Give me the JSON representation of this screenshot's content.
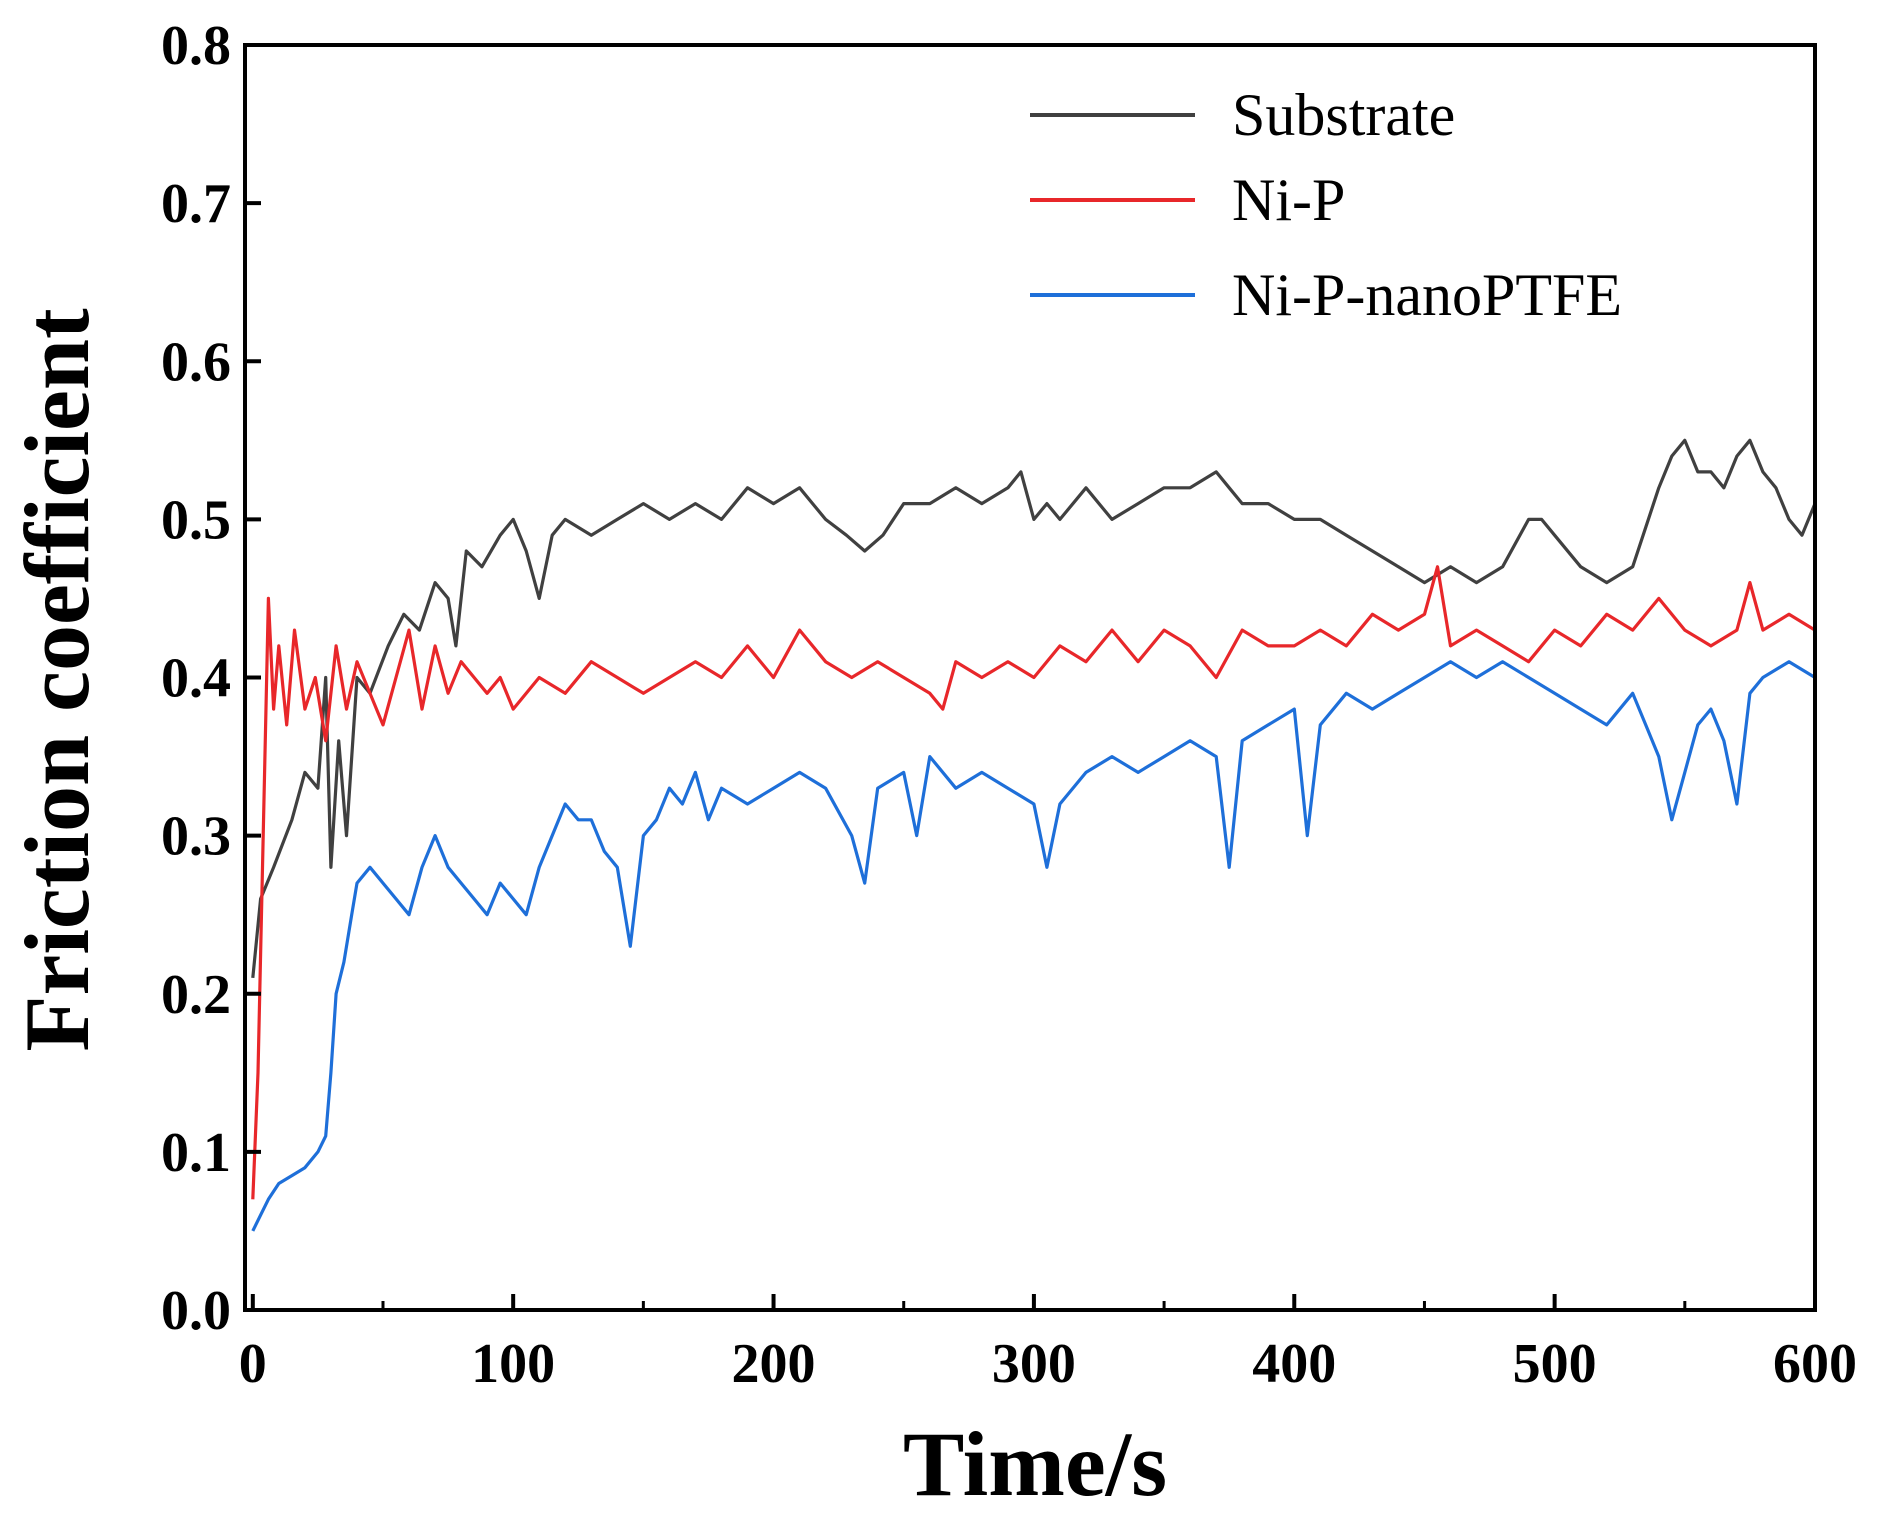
{
  "chart_data": {
    "type": "line",
    "title": "",
    "xlabel": "Time/s",
    "ylabel": "Friction coefficient",
    "xlim": [
      -3,
      600
    ],
    "ylim": [
      0.0,
      0.8
    ],
    "xticks": [
      0,
      100,
      200,
      300,
      400,
      500,
      600
    ],
    "xtick_labels": [
      "0",
      "100",
      "200",
      "300",
      "400",
      "500",
      "600"
    ],
    "yticks": [
      0.0,
      0.1,
      0.2,
      0.3,
      0.4,
      0.5,
      0.6,
      0.7,
      0.8
    ],
    "ytick_labels": [
      "0.0",
      "0.1",
      "0.2",
      "0.3",
      "0.4",
      "0.5",
      "0.6",
      "0.7",
      "0.8"
    ],
    "grid": false,
    "legend_position": "top-right",
    "series": [
      {
        "name": "Substrate",
        "color": "#404040",
        "x": [
          0,
          3,
          8,
          15,
          20,
          25,
          28,
          30,
          33,
          36,
          40,
          45,
          52,
          58,
          64,
          70,
          75,
          78,
          82,
          88,
          95,
          100,
          105,
          110,
          115,
          120,
          130,
          140,
          150,
          160,
          170,
          180,
          190,
          200,
          210,
          215,
          220,
          228,
          235,
          242,
          250,
          260,
          270,
          280,
          290,
          295,
          300,
          305,
          310,
          320,
          330,
          340,
          350,
          360,
          370,
          375,
          380,
          390,
          400,
          410,
          420,
          430,
          440,
          450,
          460,
          470,
          480,
          490,
          495,
          500,
          510,
          520,
          530,
          540,
          545,
          550,
          555,
          560,
          565,
          570,
          575,
          580,
          585,
          590,
          595,
          600
        ],
        "y": [
          0.21,
          0.26,
          0.28,
          0.31,
          0.34,
          0.33,
          0.4,
          0.28,
          0.36,
          0.3,
          0.4,
          0.39,
          0.42,
          0.44,
          0.43,
          0.46,
          0.45,
          0.42,
          0.48,
          0.47,
          0.49,
          0.5,
          0.48,
          0.45,
          0.49,
          0.5,
          0.49,
          0.5,
          0.51,
          0.5,
          0.51,
          0.5,
          0.52,
          0.51,
          0.52,
          0.51,
          0.5,
          0.49,
          0.48,
          0.49,
          0.51,
          0.51,
          0.52,
          0.51,
          0.52,
          0.53,
          0.5,
          0.51,
          0.5,
          0.52,
          0.5,
          0.51,
          0.52,
          0.52,
          0.53,
          0.52,
          0.51,
          0.51,
          0.5,
          0.5,
          0.49,
          0.48,
          0.47,
          0.46,
          0.47,
          0.46,
          0.47,
          0.5,
          0.5,
          0.49,
          0.47,
          0.46,
          0.47,
          0.52,
          0.54,
          0.55,
          0.53,
          0.53,
          0.52,
          0.54,
          0.55,
          0.53,
          0.52,
          0.5,
          0.49,
          0.51
        ]
      },
      {
        "name": "Ni-P",
        "color": "#e8272a",
        "x": [
          0,
          2,
          4,
          6,
          8,
          10,
          13,
          16,
          20,
          24,
          28,
          32,
          36,
          40,
          45,
          50,
          55,
          60,
          65,
          70,
          75,
          80,
          85,
          90,
          95,
          100,
          110,
          120,
          130,
          140,
          150,
          160,
          170,
          180,
          190,
          200,
          210,
          220,
          230,
          240,
          250,
          260,
          265,
          270,
          280,
          290,
          300,
          310,
          320,
          330,
          340,
          350,
          360,
          370,
          380,
          390,
          400,
          410,
          420,
          430,
          440,
          450,
          455,
          460,
          470,
          480,
          490,
          500,
          510,
          520,
          530,
          540,
          550,
          560,
          570,
          575,
          580,
          590,
          600
        ],
        "y": [
          0.07,
          0.15,
          0.3,
          0.45,
          0.38,
          0.42,
          0.37,
          0.43,
          0.38,
          0.4,
          0.36,
          0.42,
          0.38,
          0.41,
          0.39,
          0.37,
          0.4,
          0.43,
          0.38,
          0.42,
          0.39,
          0.41,
          0.4,
          0.39,
          0.4,
          0.38,
          0.4,
          0.39,
          0.41,
          0.4,
          0.39,
          0.4,
          0.41,
          0.4,
          0.42,
          0.4,
          0.43,
          0.41,
          0.4,
          0.41,
          0.4,
          0.39,
          0.38,
          0.41,
          0.4,
          0.41,
          0.4,
          0.42,
          0.41,
          0.43,
          0.41,
          0.43,
          0.42,
          0.4,
          0.43,
          0.42,
          0.42,
          0.43,
          0.42,
          0.44,
          0.43,
          0.44,
          0.47,
          0.42,
          0.43,
          0.42,
          0.41,
          0.43,
          0.42,
          0.44,
          0.43,
          0.45,
          0.43,
          0.42,
          0.43,
          0.46,
          0.43,
          0.44,
          0.43
        ]
      },
      {
        "name": "Ni-P-nanoPTFE",
        "color": "#1e6fd9",
        "x": [
          0,
          3,
          6,
          10,
          15,
          20,
          25,
          28,
          30,
          32,
          35,
          38,
          40,
          45,
          50,
          55,
          60,
          65,
          70,
          75,
          80,
          85,
          90,
          95,
          100,
          105,
          110,
          115,
          120,
          125,
          130,
          135,
          140,
          145,
          150,
          155,
          160,
          165,
          170,
          175,
          180,
          190,
          200,
          210,
          220,
          230,
          235,
          240,
          250,
          255,
          260,
          270,
          280,
          290,
          300,
          305,
          310,
          320,
          330,
          340,
          350,
          360,
          370,
          375,
          380,
          390,
          400,
          405,
          410,
          420,
          430,
          440,
          450,
          460,
          470,
          480,
          490,
          500,
          510,
          520,
          530,
          540,
          545,
          550,
          555,
          560,
          565,
          570,
          575,
          580,
          590,
          600
        ],
        "y": [
          0.05,
          0.06,
          0.07,
          0.08,
          0.085,
          0.09,
          0.1,
          0.11,
          0.15,
          0.2,
          0.22,
          0.25,
          0.27,
          0.28,
          0.27,
          0.26,
          0.25,
          0.28,
          0.3,
          0.28,
          0.27,
          0.26,
          0.25,
          0.27,
          0.26,
          0.25,
          0.28,
          0.3,
          0.32,
          0.31,
          0.31,
          0.29,
          0.28,
          0.23,
          0.3,
          0.31,
          0.33,
          0.32,
          0.34,
          0.31,
          0.33,
          0.32,
          0.33,
          0.34,
          0.33,
          0.3,
          0.27,
          0.33,
          0.34,
          0.3,
          0.35,
          0.33,
          0.34,
          0.33,
          0.32,
          0.28,
          0.32,
          0.34,
          0.35,
          0.34,
          0.35,
          0.36,
          0.35,
          0.28,
          0.36,
          0.37,
          0.38,
          0.3,
          0.37,
          0.39,
          0.38,
          0.39,
          0.4,
          0.41,
          0.4,
          0.41,
          0.4,
          0.39,
          0.38,
          0.37,
          0.39,
          0.35,
          0.31,
          0.34,
          0.37,
          0.38,
          0.36,
          0.32,
          0.39,
          0.4,
          0.41,
          0.4
        ]
      }
    ]
  }
}
